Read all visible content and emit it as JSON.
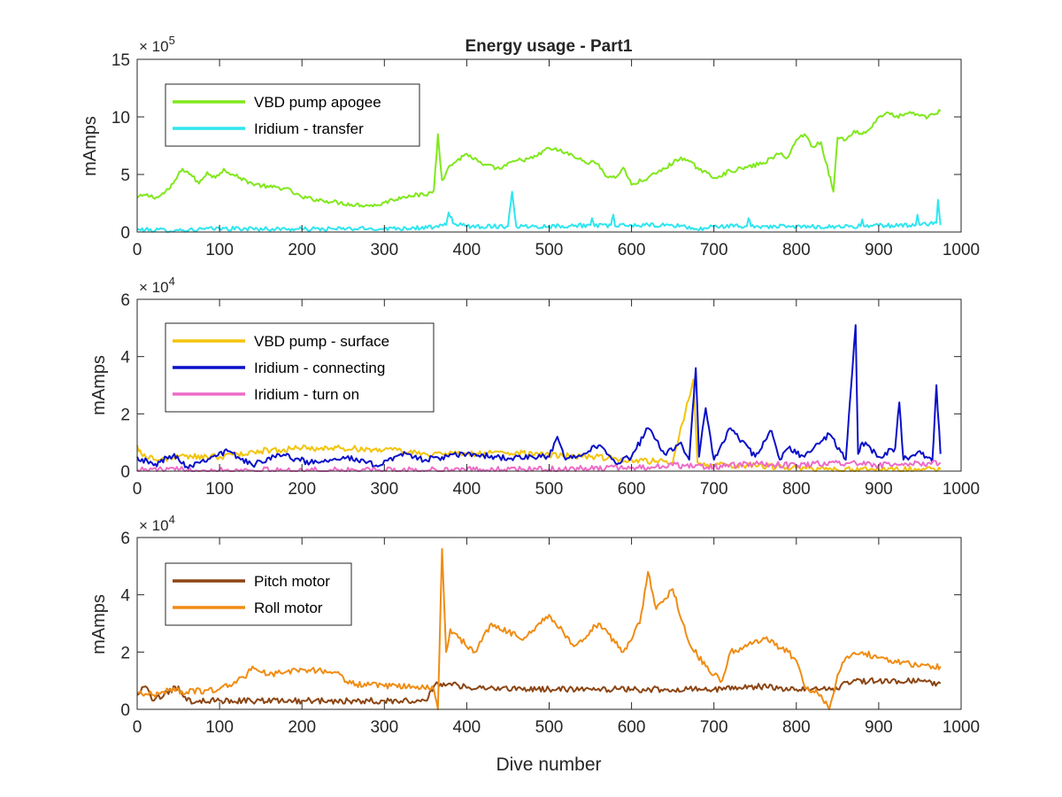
{
  "chart_data": [
    {
      "type": "line",
      "title": "Energy usage - Part1",
      "xlabel": "",
      "ylabel": "mAmps",
      "y_exponent_label": "× 10^5",
      "y_multiplier": 100000,
      "xlim": [
        0,
        1000
      ],
      "ylim": [
        0,
        1500000
      ],
      "xticks": [
        "0",
        "100",
        "200",
        "300",
        "400",
        "500",
        "600",
        "700",
        "800",
        "900",
        "1000"
      ],
      "yticks": [
        "0",
        "5",
        "10",
        "15"
      ],
      "grid": false,
      "legend_position": "top-left",
      "series": [
        {
          "name": "VBD pump apogee",
          "color": "#80e81c",
          "x": [
            0,
            10,
            25,
            40,
            55,
            65,
            75,
            85,
            95,
            105,
            115,
            125,
            140,
            160,
            180,
            200,
            230,
            260,
            290,
            310,
            330,
            350,
            360,
            365,
            370,
            380,
            400,
            420,
            440,
            460,
            480,
            500,
            520,
            540,
            560,
            570,
            580,
            590,
            600,
            620,
            640,
            660,
            680,
            700,
            720,
            740,
            760,
            780,
            790,
            800,
            810,
            820,
            830,
            845,
            850,
            860,
            870,
            880,
            890,
            900,
            910,
            920,
            940,
            960,
            975
          ],
          "y": [
            300000,
            320000,
            300000,
            380000,
            550000,
            500000,
            420000,
            520000,
            470000,
            550000,
            500000,
            470000,
            420000,
            390000,
            380000,
            300000,
            270000,
            240000,
            230000,
            280000,
            320000,
            320000,
            360000,
            850000,
            450000,
            580000,
            680000,
            580000,
            550000,
            620000,
            640000,
            730000,
            690000,
            620000,
            590000,
            480000,
            470000,
            560000,
            410000,
            470000,
            550000,
            650000,
            560000,
            470000,
            530000,
            560000,
            600000,
            680000,
            650000,
            800000,
            850000,
            740000,
            780000,
            350000,
            820000,
            800000,
            880000,
            850000,
            900000,
            1000000,
            1040000,
            1000000,
            1030000,
            1000000,
            1050000
          ]
        },
        {
          "name": "Iridium - transfer",
          "color": "#2ee6f0",
          "x": [
            0,
            50,
            100,
            200,
            300,
            360,
            375,
            378,
            385,
            400,
            450,
            455,
            460,
            500,
            550,
            552,
            555,
            575,
            578,
            580,
            600,
            660,
            680,
            700,
            740,
            742,
            745,
            800,
            878,
            880,
            882,
            900,
            945,
            947,
            950,
            970,
            972,
            975
          ],
          "y": [
            20000,
            15000,
            30000,
            25000,
            30000,
            40000,
            60000,
            170000,
            70000,
            50000,
            50000,
            350000,
            50000,
            50000,
            60000,
            120000,
            50000,
            60000,
            150000,
            50000,
            60000,
            55000,
            20000,
            50000,
            50000,
            120000,
            50000,
            45000,
            50000,
            110000,
            50000,
            55000,
            60000,
            150000,
            60000,
            80000,
            280000,
            60000
          ]
        }
      ]
    },
    {
      "type": "line",
      "title": "",
      "xlabel": "",
      "ylabel": "mAmps",
      "y_exponent_label": "× 10^4",
      "y_multiplier": 10000,
      "xlim": [
        0,
        1000
      ],
      "ylim": [
        0,
        60000
      ],
      "xticks": [
        "0",
        "100",
        "200",
        "300",
        "400",
        "500",
        "600",
        "700",
        "800",
        "900",
        "1000"
      ],
      "yticks": [
        "0",
        "2",
        "4",
        "6"
      ],
      "grid": false,
      "legend_position": "top-left",
      "series": [
        {
          "name": "VBD pump - surface",
          "color": "#f2c40c",
          "x": [
            0,
            5,
            20,
            50,
            100,
            150,
            200,
            250,
            300,
            350,
            400,
            450,
            500,
            550,
            600,
            650,
            675,
            680,
            700,
            750,
            800,
            850,
            900,
            950,
            975
          ],
          "y": [
            9000,
            6000,
            4000,
            5000,
            5000,
            7000,
            8000,
            8000,
            7500,
            6000,
            6000,
            6500,
            5500,
            5000,
            4000,
            3000,
            32000,
            3000,
            2000,
            2000,
            1000,
            500,
            500,
            500,
            500
          ]
        },
        {
          "name": "Iridium - connecting",
          "color": "#0a10c8",
          "x": [
            0,
            20,
            45,
            60,
            90,
            110,
            140,
            170,
            210,
            250,
            290,
            320,
            350,
            400,
            450,
            500,
            510,
            520,
            560,
            580,
            600,
            620,
            640,
            660,
            670,
            678,
            682,
            690,
            700,
            720,
            750,
            770,
            780,
            790,
            810,
            840,
            860,
            872,
            875,
            880,
            900,
            920,
            925,
            930,
            950,
            965,
            970,
            975
          ],
          "y": [
            5000,
            2000,
            6000,
            1500,
            5000,
            7000,
            2000,
            6000,
            3000,
            5000,
            2000,
            6000,
            4000,
            6000,
            4500,
            5000,
            12000,
            4000,
            9000,
            3000,
            5000,
            15000,
            6000,
            10000,
            4000,
            36000,
            5000,
            22000,
            4000,
            15000,
            5000,
            14000,
            4000,
            8000,
            5000,
            13000,
            4000,
            51000,
            6000,
            10000,
            5000,
            8000,
            24000,
            4000,
            7000,
            3000,
            30000,
            6000
          ]
        },
        {
          "name": "Iridium - turn on",
          "color": "#ee6cc8",
          "x": [
            0,
            100,
            200,
            300,
            400,
            500,
            600,
            650,
            700,
            750,
            800,
            850,
            900,
            950,
            975
          ],
          "y": [
            500,
            400,
            300,
            300,
            500,
            600,
            1200,
            2000,
            1500,
            2500,
            2000,
            3000,
            2000,
            2500,
            3000
          ]
        }
      ]
    },
    {
      "type": "line",
      "title": "",
      "xlabel": "Dive number",
      "ylabel": "mAmps",
      "y_exponent_label": "× 10^4",
      "y_multiplier": 10000,
      "xlim": [
        0,
        1000
      ],
      "ylim": [
        0,
        60000
      ],
      "xticks": [
        "0",
        "100",
        "200",
        "300",
        "400",
        "500",
        "600",
        "700",
        "800",
        "900",
        "1000"
      ],
      "yticks": [
        "0",
        "2",
        "4",
        "6"
      ],
      "grid": false,
      "legend_position": "top-left",
      "series": [
        {
          "name": "Pitch motor",
          "color": "#8b4513",
          "x": [
            0,
            10,
            20,
            50,
            60,
            100,
            200,
            300,
            350,
            355,
            360,
            365,
            370,
            380,
            400,
            500,
            600,
            700,
            750,
            800,
            850,
            860,
            900,
            950,
            975
          ],
          "y": [
            5000,
            8000,
            3000,
            8000,
            3000,
            3000,
            3000,
            3000,
            3000,
            6000,
            8000,
            9000,
            8000,
            9000,
            7500,
            7000,
            7000,
            7000,
            8000,
            7000,
            7000,
            9500,
            10000,
            10000,
            9000
          ]
        },
        {
          "name": "Roll motor",
          "color": "#f08c14",
          "x": [
            0,
            20,
            40,
            60,
            100,
            130,
            140,
            160,
            200,
            240,
            260,
            300,
            340,
            360,
            365,
            370,
            375,
            380,
            390,
            410,
            430,
            450,
            470,
            500,
            530,
            560,
            590,
            610,
            620,
            630,
            650,
            670,
            690,
            700,
            710,
            720,
            740,
            760,
            790,
            800,
            810,
            830,
            840,
            850,
            860,
            880,
            900,
            920,
            950,
            975
          ],
          "y": [
            6000,
            5000,
            7000,
            6000,
            7000,
            11000,
            15000,
            12000,
            14000,
            13000,
            9000,
            8000,
            8000,
            7000,
            0,
            56000,
            20000,
            28000,
            25000,
            20000,
            30000,
            27000,
            25000,
            33000,
            22000,
            30000,
            20000,
            30000,
            48000,
            35000,
            42000,
            23000,
            15000,
            12000,
            10000,
            20000,
            22000,
            25000,
            20000,
            17000,
            8000,
            5000,
            0,
            12000,
            18000,
            20000,
            18000,
            17000,
            15000,
            15000
          ]
        }
      ]
    }
  ]
}
